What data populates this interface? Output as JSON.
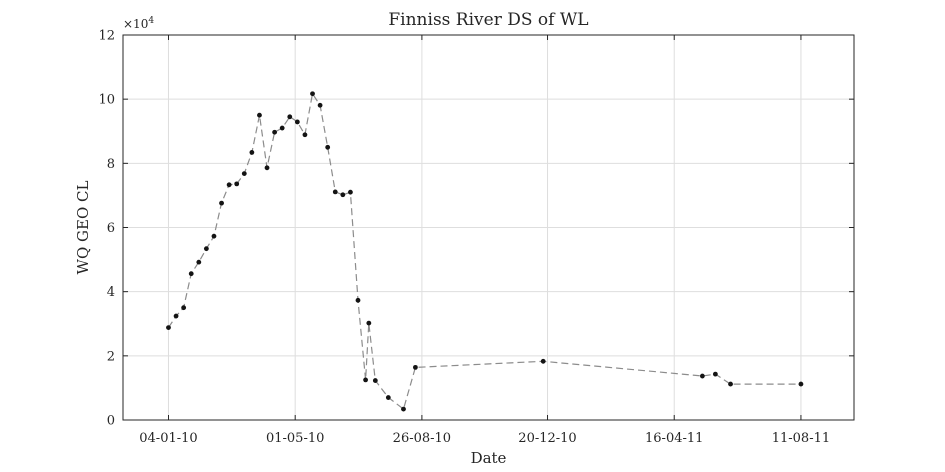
{
  "chart_data": {
    "type": "line",
    "title": "Finniss River DS of WL",
    "xlabel": "Date",
    "ylabel": "WQ GEO CL",
    "y_multiplier_label": "×10",
    "y_multiplier_exponent": "4",
    "x_axis_type": "date",
    "xlim": [
      "2009-11-23",
      "2011-09-29"
    ],
    "x_ticks": [
      "2010-01-04",
      "2010-05-01",
      "2010-08-26",
      "2010-12-20",
      "2011-04-16",
      "2011-08-11"
    ],
    "x_tick_labels": [
      "04-01-10",
      "01-05-10",
      "26-08-10",
      "20-12-10",
      "16-04-11",
      "11-08-11"
    ],
    "ylim": [
      0,
      120000
    ],
    "y_ticks": [
      0,
      20000,
      40000,
      60000,
      80000,
      100000,
      120000
    ],
    "y_tick_labels": [
      "0",
      "2",
      "4",
      "6",
      "8",
      "10",
      "12"
    ],
    "grid": true,
    "series": [
      {
        "color": "#8c8c8c",
        "marker_color": "#141414",
        "line_style": "dashed",
        "x": [
          "2010-01-04",
          "2010-01-11",
          "2010-01-18",
          "2010-01-25",
          "2010-02-01",
          "2010-02-08",
          "2010-02-15",
          "2010-02-22",
          "2010-03-01",
          "2010-03-08",
          "2010-03-15",
          "2010-03-22",
          "2010-03-29",
          "2010-04-05",
          "2010-04-12",
          "2010-04-19",
          "2010-04-26",
          "2010-05-03",
          "2010-05-10",
          "2010-05-17",
          "2010-05-24",
          "2010-05-31",
          "2010-06-07",
          "2010-06-14",
          "2010-06-21",
          "2010-06-28",
          "2010-07-05",
          "2010-07-08",
          "2010-07-14",
          "2010-07-26",
          "2010-08-09",
          "2010-08-20",
          "2010-12-16",
          "2011-05-12",
          "2011-05-24",
          "2011-06-07",
          "2011-08-11"
        ],
        "y": [
          28800,
          32400,
          35000,
          45600,
          49200,
          53400,
          57300,
          67600,
          73300,
          73600,
          76800,
          83400,
          95000,
          78600,
          89700,
          91000,
          94500,
          92900,
          88900,
          101700,
          98100,
          85000,
          71100,
          70200,
          71000,
          37300,
          12500,
          30200,
          12300,
          7000,
          3400,
          16400,
          18300,
          13700,
          14300,
          11200,
          11200
        ]
      }
    ]
  }
}
